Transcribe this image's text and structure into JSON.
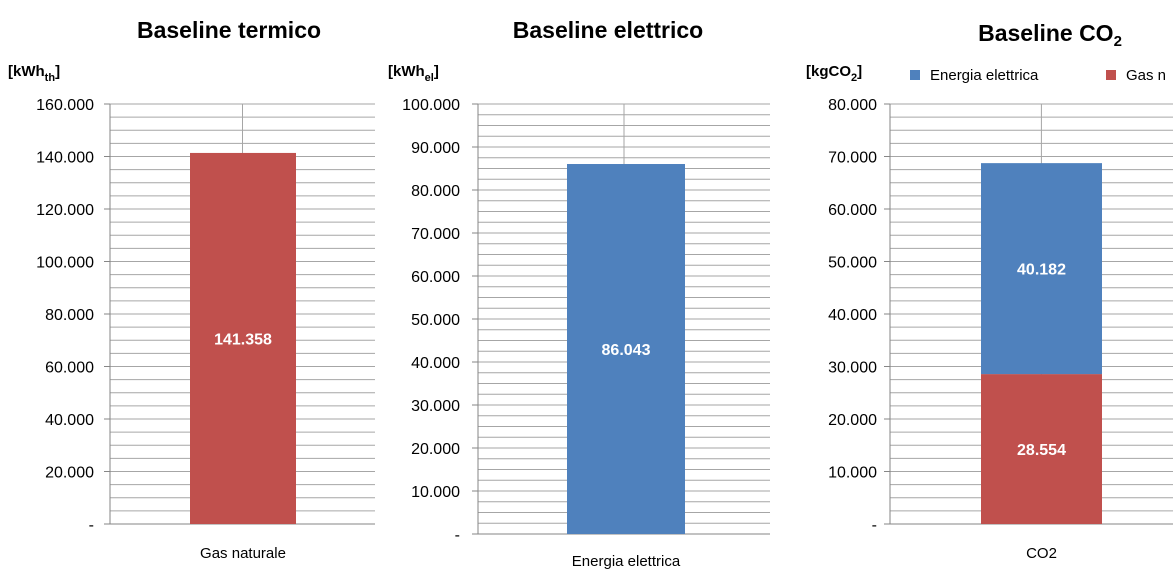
{
  "colors": {
    "gas": "#C0504D",
    "electric": "#4F81BD",
    "grid": "#A6A6A6",
    "axis": "#868686"
  },
  "chart_data": [
    {
      "type": "bar",
      "title": "Baseline termico",
      "ylabel": {
        "main": "[kWh",
        "sub": "th",
        "end": "]"
      },
      "ylim": [
        0,
        160000
      ],
      "major_step": 20000,
      "minor_step": 5000,
      "yticks": [
        "-",
        "20.000",
        "40.000",
        "60.000",
        "80.000",
        "100.000",
        "120.000",
        "140.000",
        "160.000"
      ],
      "categories": [
        "Gas naturale"
      ],
      "series": [
        {
          "values": [
            141358
          ],
          "labels": [
            "141.358"
          ],
          "color_key": "gas"
        }
      ],
      "grid": true
    },
    {
      "type": "bar",
      "title": "Baseline elettrico",
      "ylabel": {
        "main": "[kWh",
        "sub": "el",
        "end": "]"
      },
      "ylim": [
        0,
        100000
      ],
      "major_step": 10000,
      "minor_step": 2500,
      "yticks": [
        "-",
        "10.000",
        "20.000",
        "30.000",
        "40.000",
        "50.000",
        "60.000",
        "70.000",
        "80.000",
        "90.000",
        "100.000"
      ],
      "categories": [
        "Energia elettrica"
      ],
      "series": [
        {
          "values": [
            86043
          ],
          "labels": [
            "86.043"
          ],
          "color_key": "electric"
        }
      ],
      "grid": true
    },
    {
      "type": "bar",
      "stacked": true,
      "title": {
        "main": "Baseline CO",
        "sub": "2"
      },
      "ylabel": {
        "main": "[kgCO",
        "sub": "2",
        "end": "]"
      },
      "ylim": [
        0,
        80000
      ],
      "major_step": 10000,
      "minor_step": 2500,
      "yticks": [
        "-",
        "10.000",
        "20.000",
        "30.000",
        "40.000",
        "50.000",
        "60.000",
        "70.000",
        "80.000"
      ],
      "categories": [
        "CO2"
      ],
      "series": [
        {
          "name": "Gas naturale",
          "values": [
            28554
          ],
          "labels": [
            "28.554"
          ],
          "color_key": "gas"
        },
        {
          "name": "Energia elettrica",
          "values": [
            40182
          ],
          "labels": [
            "40.182"
          ],
          "color_key": "electric"
        }
      ],
      "legend": {
        "position": "top",
        "items": [
          "Energia elettrica",
          "Gas naturale"
        ],
        "visible_text": [
          "Energia elettrica",
          "Gas n"
        ]
      },
      "grid": true
    }
  ]
}
